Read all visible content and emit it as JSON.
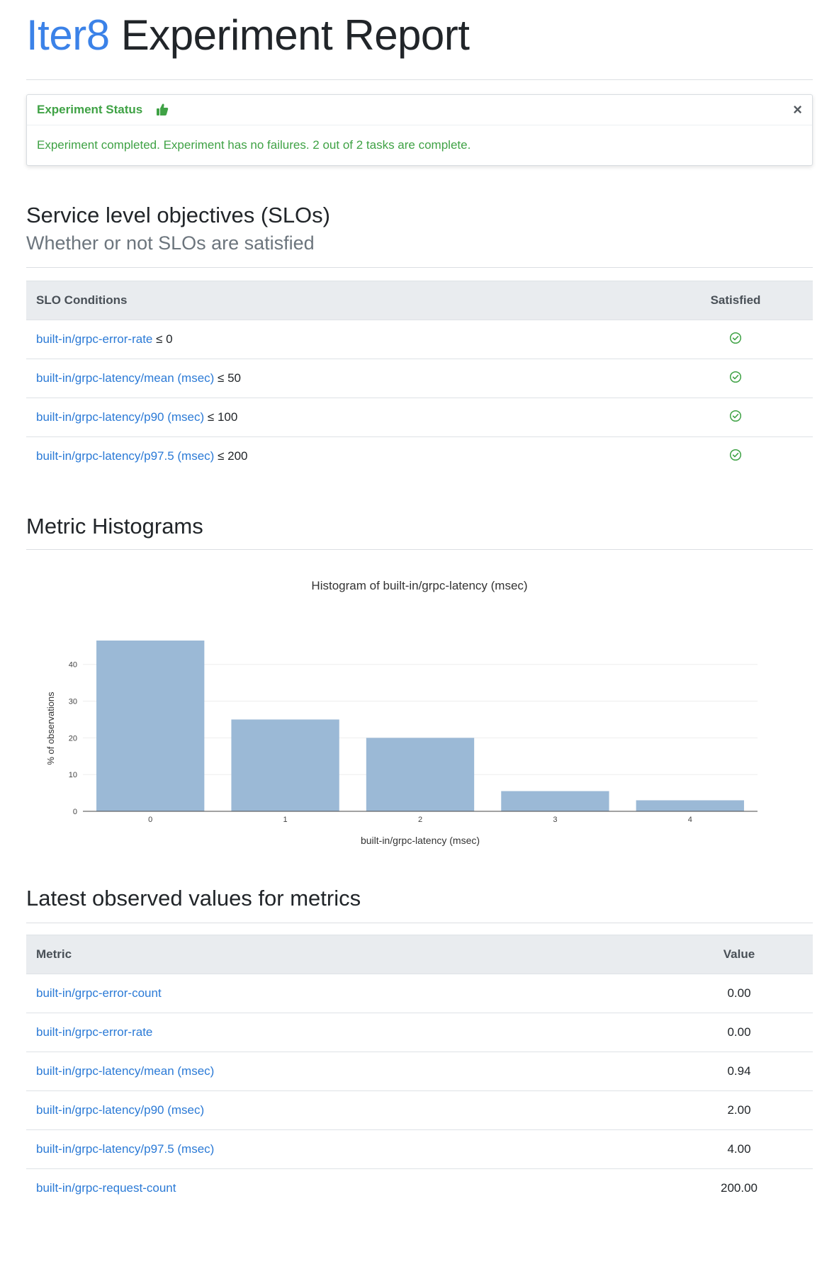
{
  "header": {
    "brand": "Iter8",
    "title": "Experiment Report"
  },
  "status": {
    "title": "Experiment Status",
    "message": "Experiment completed. Experiment has no failures. 2 out of 2 tasks are complete.",
    "close": "×",
    "icon": "thumbs-up-icon",
    "color": "#3fa245"
  },
  "slo": {
    "title": "Service level objectives (SLOs)",
    "subtitle": "Whether or not SLOs are satisfied",
    "columns": [
      "SLO Conditions",
      "Satisfied"
    ],
    "rows": [
      {
        "metric": "built-in/grpc-error-rate",
        "condition": "≤ 0"
      },
      {
        "metric": "built-in/grpc-latency/mean (msec)",
        "condition": "≤ 50"
      },
      {
        "metric": "built-in/grpc-latency/p90 (msec)",
        "condition": "≤ 100"
      },
      {
        "metric": "built-in/grpc-latency/p97.5 (msec)",
        "condition": "≤ 200"
      }
    ],
    "satisfied": [
      true,
      true,
      true,
      true
    ],
    "check_icon": "check-circle-icon"
  },
  "histograms": {
    "title": "Metric Histograms"
  },
  "chart_data": {
    "type": "bar",
    "title": "Histogram of built-in/grpc-latency (msec)",
    "xlabel": "built-in/grpc-latency (msec)",
    "ylabel": "% of observations",
    "categories": [
      "0",
      "1",
      "2",
      "3",
      "4"
    ],
    "values": [
      46.5,
      25,
      20,
      5.5,
      3
    ],
    "ylim": [
      0,
      46.5
    ],
    "yticks": [
      0,
      10,
      20,
      30,
      40
    ],
    "grid": true,
    "bar_color": "#9bb9d6"
  },
  "latest": {
    "title": "Latest observed values for metrics",
    "columns": [
      "Metric",
      "Value"
    ],
    "rows": [
      {
        "metric": "built-in/grpc-error-count",
        "value": "0.00"
      },
      {
        "metric": "built-in/grpc-error-rate",
        "value": "0.00"
      },
      {
        "metric": "built-in/grpc-latency/mean (msec)",
        "value": "0.94"
      },
      {
        "metric": "built-in/grpc-latency/p90 (msec)",
        "value": "2.00"
      },
      {
        "metric": "built-in/grpc-latency/p97.5 (msec)",
        "value": "4.00"
      },
      {
        "metric": "built-in/grpc-request-count",
        "value": "200.00"
      }
    ]
  },
  "colors": {
    "link": "#2b7ad6",
    "brand": "#3b82e8",
    "success": "#3fa245"
  }
}
